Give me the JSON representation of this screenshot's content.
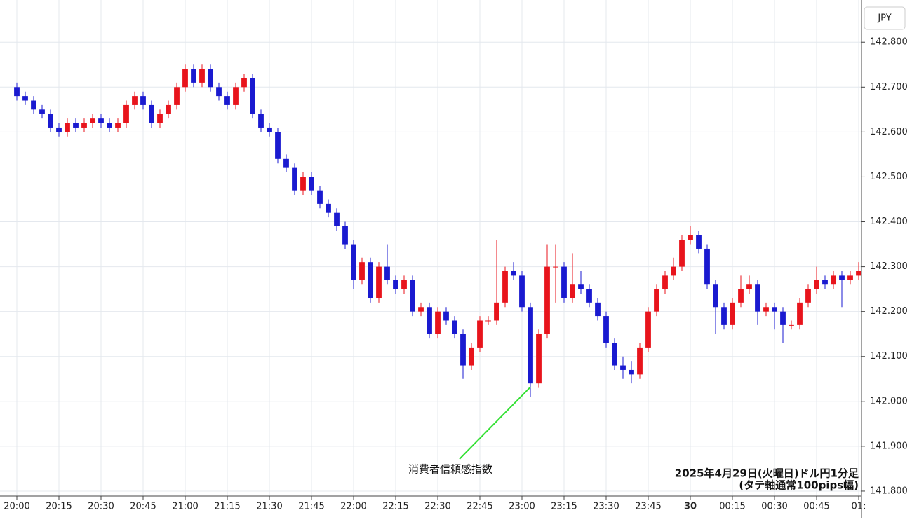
{
  "chart_data": {
    "type": "candlestick",
    "currency": "JPY",
    "annotation": "消費者信頼感指数",
    "footer": [
      "2025年4月29日(火曜日)ドル円1分足",
      "(タテ軸通常100pips幅)"
    ],
    "up_color": "#e8141c",
    "down_color": "#1a1ad0",
    "grid": true,
    "xlim": [
      -6,
      301
    ],
    "ylim": [
      141.789,
      142.894
    ],
    "xticks": [
      {
        "value": 0,
        "label": "20:00"
      },
      {
        "value": 15,
        "label": "20:15"
      },
      {
        "value": 30,
        "label": "20:30"
      },
      {
        "value": 45,
        "label": "20:45"
      },
      {
        "value": 60,
        "label": "21:00"
      },
      {
        "value": 75,
        "label": "21:15"
      },
      {
        "value": 90,
        "label": "21:30"
      },
      {
        "value": 105,
        "label": "21:45"
      },
      {
        "value": 120,
        "label": "22:00"
      },
      {
        "value": 135,
        "label": "22:15"
      },
      {
        "value": 150,
        "label": "22:30"
      },
      {
        "value": 165,
        "label": "22:45"
      },
      {
        "value": 180,
        "label": "23:00"
      },
      {
        "value": 195,
        "label": "23:15"
      },
      {
        "value": 210,
        "label": "23:30"
      },
      {
        "value": 225,
        "label": "23:45"
      },
      {
        "value": 240,
        "label": "30"
      },
      {
        "value": 255,
        "label": "00:15"
      },
      {
        "value": 270,
        "label": "00:30"
      },
      {
        "value": 285,
        "label": "00:45"
      },
      {
        "value": 300,
        "label": "01:"
      }
    ],
    "yticks": [
      {
        "value": 141.8,
        "label": "141.800"
      },
      {
        "value": 141.9,
        "label": "141.900"
      },
      {
        "value": 142.0,
        "label": "142.000"
      },
      {
        "value": 142.1,
        "label": "142.100"
      },
      {
        "value": 142.2,
        "label": "142.200"
      },
      {
        "value": 142.3,
        "label": "142.300"
      },
      {
        "value": 142.4,
        "label": "142.400"
      },
      {
        "value": 142.5,
        "label": "142.500"
      },
      {
        "value": 142.6,
        "label": "142.600"
      },
      {
        "value": 142.7,
        "label": "142.700"
      },
      {
        "value": 142.8,
        "label": "142.800"
      }
    ],
    "annotation_point": 61,
    "x": [
      0,
      3,
      6,
      9,
      12,
      15,
      18,
      21,
      24,
      27,
      30,
      33,
      36,
      39,
      42,
      45,
      48,
      51,
      54,
      57,
      60,
      63,
      66,
      69,
      72,
      75,
      78,
      81,
      84,
      87,
      90,
      93,
      96,
      99,
      102,
      105,
      108,
      111,
      114,
      117,
      120,
      123,
      126,
      129,
      132,
      135,
      138,
      141,
      144,
      147,
      150,
      153,
      156,
      159,
      162,
      165,
      168,
      171,
      174,
      177,
      180,
      183,
      186,
      189,
      192,
      195,
      198,
      201,
      204,
      207,
      210,
      213,
      216,
      219,
      222,
      225,
      228,
      231,
      234,
      237,
      240,
      243,
      246,
      249,
      252,
      255,
      258,
      261,
      264,
      267,
      270,
      273,
      276,
      279,
      282,
      285,
      288,
      291,
      294,
      297,
      300
    ],
    "open": [
      142.7,
      142.68,
      142.67,
      142.65,
      142.64,
      142.61,
      142.6,
      142.62,
      142.61,
      142.62,
      142.63,
      142.62,
      142.61,
      142.62,
      142.66,
      142.68,
      142.66,
      142.62,
      142.64,
      142.66,
      142.7,
      142.74,
      142.71,
      142.74,
      142.7,
      142.68,
      142.66,
      142.7,
      142.72,
      142.64,
      142.61,
      142.6,
      142.54,
      142.52,
      142.47,
      142.5,
      142.47,
      142.44,
      142.42,
      142.39,
      142.35,
      142.27,
      142.31,
      142.23,
      142.3,
      142.27,
      142.25,
      142.27,
      142.2,
      142.21,
      142.15,
      142.2,
      142.18,
      142.15,
      142.08,
      142.12,
      142.18,
      142.18,
      142.22,
      142.29,
      142.28,
      142.21,
      142.04,
      142.15,
      142.3,
      142.3,
      142.23,
      142.26,
      142.25,
      142.22,
      142.19,
      142.13,
      142.08,
      142.07,
      142.06,
      142.12,
      142.2,
      142.25,
      142.28,
      142.3,
      142.36,
      142.37,
      142.34,
      142.26,
      142.21,
      142.17,
      142.22,
      142.25,
      142.26,
      142.2,
      142.21,
      142.2,
      142.17,
      142.17,
      142.22,
      142.25,
      142.27,
      142.26,
      142.28,
      142.27,
      142.28
    ],
    "high": [
      142.71,
      142.69,
      142.68,
      142.66,
      142.65,
      142.62,
      142.63,
      142.63,
      142.63,
      142.64,
      142.64,
      142.63,
      142.63,
      142.67,
      142.69,
      142.69,
      142.67,
      142.65,
      142.67,
      142.71,
      142.75,
      142.75,
      142.75,
      142.75,
      142.71,
      142.69,
      142.71,
      142.73,
      142.73,
      142.65,
      142.62,
      142.61,
      142.55,
      142.53,
      142.51,
      142.51,
      142.48,
      142.45,
      142.43,
      142.4,
      142.36,
      142.32,
      142.32,
      142.31,
      142.35,
      142.28,
      142.28,
      142.28,
      142.22,
      142.22,
      142.21,
      142.21,
      142.19,
      142.16,
      142.13,
      142.19,
      142.19,
      142.36,
      142.3,
      142.31,
      142.29,
      142.22,
      142.16,
      142.35,
      142.35,
      142.31,
      142.33,
      142.29,
      142.26,
      142.23,
      142.2,
      142.14,
      142.1,
      142.09,
      142.13,
      142.21,
      142.26,
      142.29,
      142.32,
      142.37,
      142.39,
      142.38,
      142.35,
      142.27,
      142.22,
      142.23,
      142.28,
      142.28,
      142.27,
      142.22,
      142.22,
      142.21,
      142.18,
      142.23,
      142.26,
      142.3,
      142.28,
      142.29,
      142.29,
      142.29,
      142.31
    ],
    "low": [
      142.67,
      142.66,
      142.64,
      142.63,
      142.6,
      142.59,
      142.59,
      142.6,
      142.6,
      142.61,
      142.61,
      142.6,
      142.6,
      142.61,
      142.65,
      142.65,
      142.61,
      142.61,
      142.63,
      142.65,
      142.69,
      142.7,
      142.7,
      142.69,
      142.67,
      142.65,
      142.65,
      142.69,
      142.63,
      142.6,
      142.59,
      142.53,
      142.51,
      142.46,
      142.46,
      142.46,
      142.43,
      142.41,
      142.38,
      142.34,
      142.25,
      142.26,
      142.22,
      142.22,
      142.26,
      142.24,
      142.24,
      142.19,
      142.19,
      142.14,
      142.14,
      142.17,
      142.14,
      142.05,
      142.07,
      142.11,
      142.17,
      142.17,
      142.21,
      142.27,
      142.2,
      142.01,
      142.03,
      142.14,
      142.22,
      142.22,
      142.22,
      142.24,
      142.21,
      142.18,
      142.12,
      142.07,
      142.05,
      142.04,
      142.05,
      142.11,
      142.19,
      142.24,
      142.27,
      142.29,
      142.35,
      142.33,
      142.25,
      142.15,
      142.16,
      142.16,
      142.21,
      142.24,
      142.17,
      142.19,
      142.16,
      142.13,
      142.16,
      142.16,
      142.21,
      142.24,
      142.25,
      142.25,
      142.21,
      142.26,
      142.27
    ],
    "close": [
      142.68,
      142.67,
      142.65,
      142.64,
      142.61,
      142.6,
      142.62,
      142.61,
      142.62,
      142.63,
      142.62,
      142.61,
      142.62,
      142.66,
      142.68,
      142.66,
      142.62,
      142.64,
      142.66,
      142.7,
      142.74,
      142.71,
      142.74,
      142.7,
      142.68,
      142.66,
      142.7,
      142.72,
      142.64,
      142.61,
      142.6,
      142.54,
      142.52,
      142.47,
      142.5,
      142.47,
      142.44,
      142.42,
      142.39,
      142.35,
      142.27,
      142.31,
      142.23,
      142.3,
      142.27,
      142.25,
      142.27,
      142.2,
      142.21,
      142.15,
      142.2,
      142.18,
      142.15,
      142.08,
      142.12,
      142.18,
      142.18,
      142.22,
      142.29,
      142.28,
      142.21,
      142.04,
      142.15,
      142.3,
      142.3,
      142.23,
      142.26,
      142.25,
      142.22,
      142.19,
      142.13,
      142.08,
      142.07,
      142.06,
      142.12,
      142.2,
      142.25,
      142.28,
      142.3,
      142.36,
      142.37,
      142.34,
      142.26,
      142.21,
      142.17,
      142.22,
      142.25,
      142.26,
      142.2,
      142.21,
      142.2,
      142.17,
      142.17,
      142.22,
      142.25,
      142.27,
      142.26,
      142.28,
      142.27,
      142.28,
      142.29
    ]
  }
}
